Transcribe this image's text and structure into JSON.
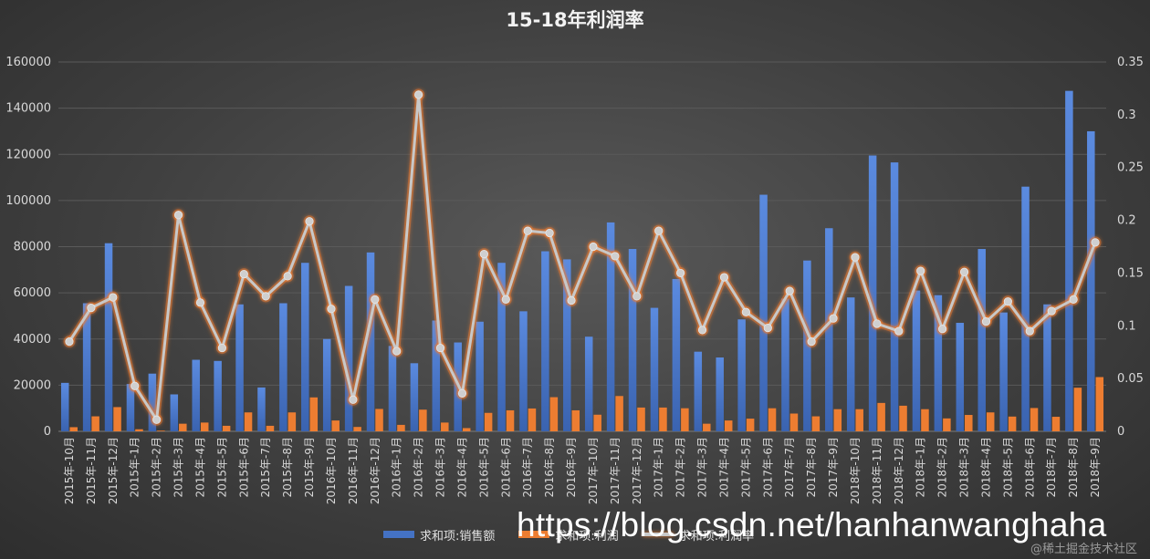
{
  "chart_data": {
    "type": "bar",
    "title": "15-18年利润率",
    "categories": [
      "2015年-10月",
      "2015年-11月",
      "2015年-12月",
      "2015年-1月",
      "2015年-2月",
      "2015年-3月",
      "2015年-4月",
      "2015年-5月",
      "2015年-6月",
      "2015年-7月",
      "2015年-8月",
      "2015年-9月",
      "2016年-10月",
      "2016年-11月",
      "2016年-12月",
      "2016年-1月",
      "2016年-2月",
      "2016年-3月",
      "2016年-4月",
      "2016年-5月",
      "2016年-6月",
      "2016年-7月",
      "2016年-8月",
      "2016年-9月",
      "2017年-10月",
      "2017年-11月",
      "2017年-12月",
      "2017年-1月",
      "2017年-2月",
      "2017年-3月",
      "2017年-4月",
      "2017年-5月",
      "2017年-6月",
      "2017年-7月",
      "2017年-8月",
      "2017年-9月",
      "2018年-10月",
      "2018年-11月",
      "2018年-12月",
      "2018年-1月",
      "2018年-2月",
      "2018年-3月",
      "2018年-4月",
      "2018年-5月",
      "2018年-6月",
      "2018年-7月",
      "2018年-8月",
      "2018年-9月"
    ],
    "series": [
      {
        "name": "求和项:销售额",
        "type": "bar",
        "axis": "left",
        "color": "#4472c4",
        "values": [
          21000,
          55500,
          81500,
          20500,
          25000,
          16000,
          31000,
          30500,
          55000,
          19000,
          55500,
          73000,
          40000,
          63000,
          77500,
          37000,
          29500,
          48000,
          38500,
          47500,
          73000,
          52000,
          78000,
          74500,
          41000,
          90500,
          79000,
          53500,
          66000,
          34500,
          32000,
          48500,
          102500,
          57500,
          74000,
          88000,
          58000,
          119500,
          116500,
          61000,
          59000,
          47000,
          79000,
          51500,
          106000,
          55000,
          147500,
          130000
        ]
      },
      {
        "name": "求和项:利润",
        "type": "bar",
        "axis": "left",
        "color": "#ed7d31",
        "values": [
          1800,
          6500,
          10500,
          900,
          300,
          3300,
          3800,
          2400,
          8200,
          2400,
          8200,
          14700,
          4700,
          1900,
          9700,
          2800,
          9400,
          3800,
          1400,
          8000,
          9100,
          9900,
          14800,
          9100,
          7200,
          15300,
          10300,
          10300,
          10000,
          3300,
          4700,
          5500,
          10000,
          7700,
          6500,
          9600,
          9600,
          12300,
          11100,
          9600,
          5600,
          7100,
          8200,
          6400,
          10100,
          6300,
          18900,
          23500
        ]
      },
      {
        "name": "求和项:利润率",
        "type": "line",
        "axis": "right",
        "color": "#c8c8c8",
        "values": [
          0.085,
          0.117,
          0.127,
          0.043,
          0.011,
          0.205,
          0.122,
          0.079,
          0.149,
          0.128,
          0.147,
          0.199,
          0.116,
          0.03,
          0.125,
          0.076,
          0.319,
          0.079,
          0.036,
          0.168,
          0.125,
          0.19,
          0.188,
          0.124,
          0.175,
          0.166,
          0.128,
          0.19,
          0.15,
          0.096,
          0.146,
          0.113,
          0.098,
          0.133,
          0.085,
          0.107,
          0.165,
          0.102,
          0.095,
          0.152,
          0.097,
          0.151,
          0.104,
          0.123,
          0.095,
          0.114,
          0.125,
          0.179
        ]
      }
    ],
    "y_left": {
      "min": 0,
      "max": 160000,
      "ticks": [
        "0",
        "20000",
        "40000",
        "60000",
        "80000",
        "100000",
        "120000",
        "140000",
        "160000"
      ]
    },
    "y_right": {
      "min": 0,
      "max": 0.35,
      "ticks": [
        "0",
        "0.05",
        "0.1",
        "0.15",
        "0.2",
        "0.25",
        "0.3",
        "0.35"
      ]
    },
    "grid": true,
    "legend_position": "bottom"
  },
  "legend": [
    {
      "label": "求和项:销售额",
      "color": "#4472c4",
      "kind": "bar"
    },
    {
      "label": "求和项:利润",
      "color": "#ed7d31",
      "kind": "bar"
    },
    {
      "label": "求和项:利润率",
      "color": "#c8c8c8",
      "kind": "line"
    }
  ],
  "watermark": {
    "url": "https://blog.csdn.net/hanhanwanghaha",
    "csdn": "@稀土掘金技术社区"
  }
}
